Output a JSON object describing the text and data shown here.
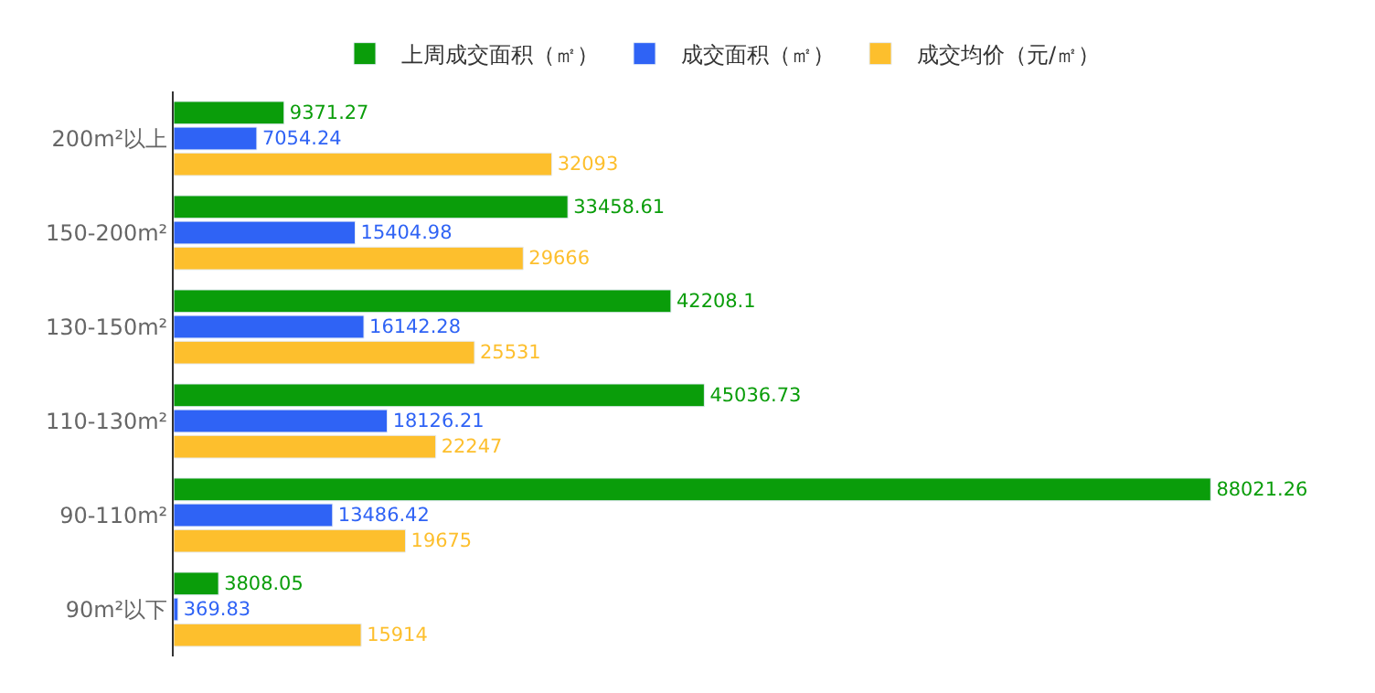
{
  "chart_data": {
    "type": "bar",
    "orientation": "horizontal",
    "categories": [
      "200m²以上",
      "150-200m²",
      "130-150m²",
      "110-130m²",
      "90-110m²",
      "90m²以下"
    ],
    "series": [
      {
        "name": "上周成交面积（㎡）",
        "color": "#0a9d0a",
        "values": [
          9371.27,
          33458.61,
          42208.1,
          45036.73,
          88021.26,
          3808.05
        ]
      },
      {
        "name": "成交面积（㎡）",
        "color": "#2f63f5",
        "values": [
          7054.24,
          15404.98,
          16142.28,
          18126.21,
          13486.42,
          369.83
        ]
      },
      {
        "name": "成交均价（元/㎡）",
        "color": "#fdbf2d",
        "values": [
          32093,
          29666,
          25531,
          22247,
          19675,
          15914
        ]
      }
    ],
    "data_labels": true,
    "legend": "top",
    "tick_labels": "y"
  }
}
